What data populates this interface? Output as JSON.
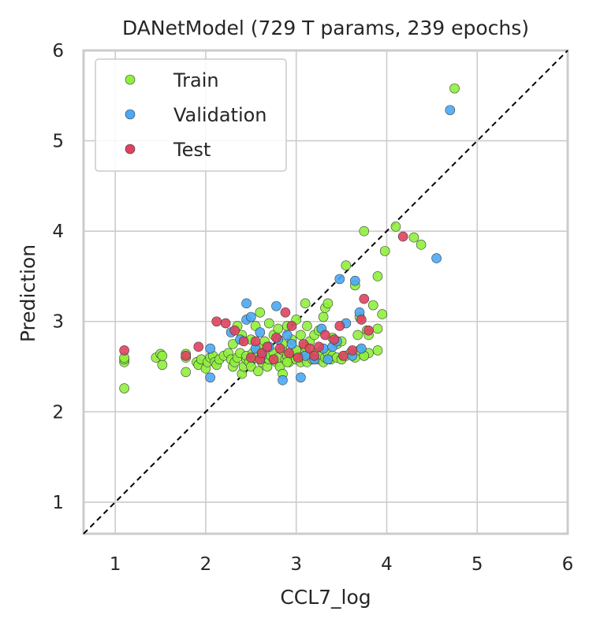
{
  "chart_data": {
    "type": "scatter",
    "title": "DANetModel (729 T params, 239 epochs)",
    "xlabel": "CCL7_log",
    "ylabel": "Prediction",
    "xlim": [
      0.65,
      6.0
    ],
    "ylim": [
      0.65,
      6.0
    ],
    "xticks": [
      "1",
      "2",
      "3",
      "4",
      "5",
      "6"
    ],
    "yticks": [
      "1",
      "2",
      "3",
      "4",
      "5",
      "6"
    ],
    "grid": true,
    "legend_position": "top-left",
    "identity_line": true,
    "series": [
      {
        "name": "Train",
        "color": "#8ff03c",
        "points": [
          [
            1.1,
            2.26
          ],
          [
            1.1,
            2.55
          ],
          [
            1.1,
            2.58
          ],
          [
            1.1,
            2.6
          ],
          [
            1.45,
            2.6
          ],
          [
            1.5,
            2.64
          ],
          [
            1.52,
            2.52
          ],
          [
            1.52,
            2.62
          ],
          [
            1.78,
            2.44
          ],
          [
            1.78,
            2.6
          ],
          [
            1.78,
            2.64
          ],
          [
            1.9,
            2.55
          ],
          [
            1.92,
            2.52
          ],
          [
            1.95,
            2.58
          ],
          [
            2.0,
            2.48
          ],
          [
            2.02,
            2.55
          ],
          [
            2.05,
            2.6
          ],
          [
            2.08,
            2.62
          ],
          [
            2.1,
            2.55
          ],
          [
            2.12,
            2.52
          ],
          [
            2.15,
            2.58
          ],
          [
            2.2,
            2.62
          ],
          [
            2.25,
            2.65
          ],
          [
            2.28,
            2.58
          ],
          [
            2.3,
            2.5
          ],
          [
            2.32,
            2.55
          ],
          [
            2.35,
            2.6
          ],
          [
            2.38,
            2.65
          ],
          [
            2.4,
            2.42
          ],
          [
            2.42,
            2.5
          ],
          [
            2.45,
            2.58
          ],
          [
            2.45,
            2.62
          ],
          [
            2.48,
            2.55
          ],
          [
            2.5,
            2.5
          ],
          [
            2.52,
            2.65
          ],
          [
            2.55,
            2.6
          ],
          [
            2.58,
            2.45
          ],
          [
            2.6,
            2.7
          ],
          [
            2.62,
            2.55
          ],
          [
            2.65,
            2.6
          ],
          [
            2.68,
            2.5
          ],
          [
            2.7,
            2.58
          ],
          [
            2.72,
            2.62
          ],
          [
            2.75,
            2.65
          ],
          [
            2.78,
            2.55
          ],
          [
            2.8,
            2.6
          ],
          [
            2.82,
            2.5
          ],
          [
            2.85,
            2.68
          ],
          [
            2.88,
            2.58
          ],
          [
            2.9,
            2.62
          ],
          [
            2.92,
            2.55
          ],
          [
            2.95,
            2.6
          ],
          [
            2.98,
            2.65
          ],
          [
            3.0,
            2.58
          ],
          [
            3.02,
            2.62
          ],
          [
            3.05,
            2.55
          ],
          [
            3.08,
            2.6
          ],
          [
            3.1,
            2.68
          ],
          [
            3.12,
            2.55
          ],
          [
            3.15,
            2.62
          ],
          [
            3.18,
            2.58
          ],
          [
            3.2,
            2.6
          ],
          [
            3.22,
            2.65
          ],
          [
            3.25,
            2.58
          ],
          [
            3.28,
            2.62
          ],
          [
            3.3,
            2.55
          ],
          [
            3.32,
            2.6
          ],
          [
            3.35,
            2.65
          ],
          [
            3.38,
            2.58
          ],
          [
            3.4,
            2.62
          ],
          [
            3.45,
            2.6
          ],
          [
            3.5,
            2.58
          ],
          [
            3.55,
            2.62
          ],
          [
            3.6,
            2.65
          ],
          [
            3.65,
            2.6
          ],
          [
            3.7,
            2.68
          ],
          [
            3.75,
            2.62
          ],
          [
            3.8,
            2.65
          ],
          [
            3.9,
            2.68
          ],
          [
            2.3,
            2.75
          ],
          [
            2.35,
            2.95
          ],
          [
            2.4,
            2.85
          ],
          [
            2.5,
            2.8
          ],
          [
            2.55,
            2.95
          ],
          [
            2.6,
            3.1
          ],
          [
            2.65,
            2.78
          ],
          [
            2.7,
            2.98
          ],
          [
            2.75,
            2.85
          ],
          [
            2.8,
            2.92
          ],
          [
            2.85,
            2.75
          ],
          [
            2.9,
            2.95
          ],
          [
            2.95,
            2.8
          ],
          [
            3.0,
            3.02
          ],
          [
            3.05,
            2.85
          ],
          [
            3.1,
            3.2
          ],
          [
            3.12,
            2.95
          ],
          [
            3.15,
            2.78
          ],
          [
            3.2,
            2.85
          ],
          [
            3.25,
            2.9
          ],
          [
            3.3,
            3.05
          ],
          [
            3.32,
            3.15
          ],
          [
            3.35,
            3.2
          ],
          [
            3.4,
            2.82
          ],
          [
            3.45,
            2.75
          ],
          [
            3.5,
            2.78
          ],
          [
            3.55,
            3.62
          ],
          [
            3.65,
            3.4
          ],
          [
            3.68,
            2.85
          ],
          [
            3.7,
            3.05
          ],
          [
            3.75,
            2.62
          ],
          [
            3.78,
            2.9
          ],
          [
            3.8,
            2.85
          ],
          [
            3.85,
            3.18
          ],
          [
            3.9,
            3.5
          ],
          [
            3.95,
            3.08
          ],
          [
            3.98,
            3.78
          ],
          [
            3.9,
            2.92
          ],
          [
            3.75,
            4.0
          ],
          [
            4.1,
            4.05
          ],
          [
            4.3,
            3.93
          ],
          [
            4.38,
            3.85
          ],
          [
            4.75,
            5.58
          ],
          [
            2.85,
            2.42
          ],
          [
            2.9,
            2.55
          ],
          [
            3.0,
            2.68
          ],
          [
            3.1,
            2.72
          ]
        ]
      },
      {
        "name": "Validation",
        "color": "#4aa8f5",
        "points": [
          [
            2.05,
            2.38
          ],
          [
            2.05,
            2.7
          ],
          [
            2.28,
            2.88
          ],
          [
            2.38,
            2.8
          ],
          [
            2.45,
            3.2
          ],
          [
            2.45,
            3.02
          ],
          [
            2.5,
            3.05
          ],
          [
            2.55,
            2.7
          ],
          [
            2.6,
            2.88
          ],
          [
            2.62,
            2.62
          ],
          [
            2.7,
            2.72
          ],
          [
            2.78,
            3.17
          ],
          [
            2.8,
            2.8
          ],
          [
            2.85,
            2.35
          ],
          [
            2.9,
            2.85
          ],
          [
            2.95,
            2.75
          ],
          [
            3.05,
            2.38
          ],
          [
            3.1,
            2.62
          ],
          [
            3.2,
            2.58
          ],
          [
            3.28,
            2.92
          ],
          [
            3.3,
            2.7
          ],
          [
            3.35,
            2.58
          ],
          [
            3.4,
            2.72
          ],
          [
            3.45,
            2.78
          ],
          [
            3.48,
            3.47
          ],
          [
            3.55,
            2.98
          ],
          [
            3.62,
            2.62
          ],
          [
            3.65,
            3.45
          ],
          [
            3.7,
            3.1
          ],
          [
            3.72,
            2.7
          ],
          [
            4.55,
            3.7
          ],
          [
            4.7,
            5.34
          ]
        ]
      },
      {
        "name": "Test",
        "color": "#e0415f",
        "points": [
          [
            1.1,
            2.68
          ],
          [
            1.78,
            2.62
          ],
          [
            1.92,
            2.72
          ],
          [
            2.12,
            3.0
          ],
          [
            2.22,
            2.98
          ],
          [
            2.32,
            2.9
          ],
          [
            2.42,
            2.78
          ],
          [
            2.5,
            2.6
          ],
          [
            2.55,
            2.78
          ],
          [
            2.6,
            2.58
          ],
          [
            2.62,
            2.65
          ],
          [
            2.68,
            2.72
          ],
          [
            2.75,
            2.58
          ],
          [
            2.78,
            2.82
          ],
          [
            2.82,
            2.7
          ],
          [
            2.88,
            3.1
          ],
          [
            2.92,
            2.65
          ],
          [
            2.95,
            2.95
          ],
          [
            3.02,
            2.6
          ],
          [
            3.08,
            2.75
          ],
          [
            3.15,
            2.7
          ],
          [
            3.2,
            2.62
          ],
          [
            3.25,
            2.72
          ],
          [
            3.32,
            2.85
          ],
          [
            3.42,
            2.8
          ],
          [
            3.48,
            2.95
          ],
          [
            3.52,
            2.62
          ],
          [
            3.62,
            2.68
          ],
          [
            3.72,
            3.02
          ],
          [
            3.75,
            3.25
          ],
          [
            3.8,
            2.9
          ],
          [
            4.18,
            3.94
          ]
        ]
      }
    ]
  }
}
